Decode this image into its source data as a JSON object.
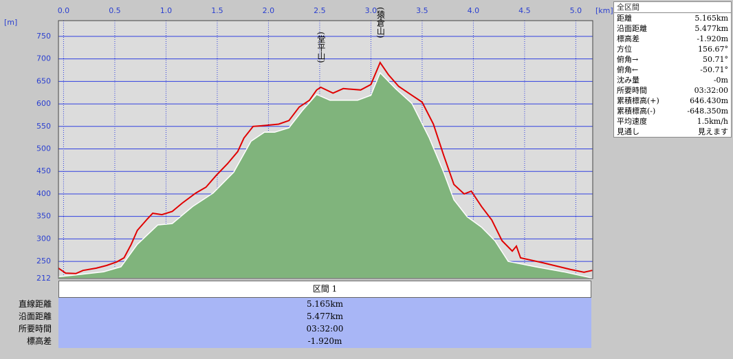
{
  "chart_data": {
    "type": "line",
    "x_unit": "[km]",
    "y_unit": "[m]",
    "xlim": [
      -0.05,
      5.165
    ],
    "ylim": [
      212,
      785
    ],
    "xticks": [
      {
        "value": 0,
        "label": "0.0"
      },
      0.5,
      {
        "value": 1,
        "label": "1.0"
      },
      1.5,
      {
        "value": 2,
        "label": "2.0"
      },
      2.5,
      {
        "value": 3,
        "label": "3.0"
      },
      3.5,
      {
        "value": 4,
        "label": "4.0"
      },
      4.5,
      {
        "value": 5,
        "label": "5.0"
      }
    ],
    "yticks": [
      212,
      250,
      300,
      350,
      400,
      450,
      500,
      550,
      600,
      650,
      700,
      750
    ],
    "grid": true,
    "annotations": [
      {
        "text": "(堂平山)",
        "x": 2.51,
        "y": 637
      },
      {
        "text": "(猿倉山)",
        "x": 3.09,
        "y": 692
      }
    ],
    "series": [
      {
        "type": "area",
        "color": "#80b47c",
        "x": [
          -0.05,
          0.12,
          0.39,
          0.56,
          0.72,
          0.92,
          1.06,
          1.26,
          1.46,
          1.66,
          1.83,
          1.96,
          2.06,
          2.2,
          2.33,
          2.47,
          2.6,
          2.87,
          3.0,
          3.09,
          3.24,
          3.4,
          3.57,
          3.71,
          3.81,
          3.94,
          4.08,
          4.21,
          4.34,
          4.61,
          4.88,
          5.16
        ],
        "values": [
          216,
          220,
          227,
          238,
          288,
          331,
          334,
          372,
          402,
          448,
          517,
          537,
          537,
          547,
          585,
          621,
          608,
          608,
          619,
          669,
          634,
          601,
          524,
          448,
          387,
          349,
          326,
          296,
          250,
          238,
          227,
          213
        ]
      },
      {
        "type": "line",
        "color": "#e00000",
        "x": [
          -0.05,
          0.02,
          0.12,
          0.19,
          0.32,
          0.42,
          0.52,
          0.59,
          0.66,
          0.72,
          0.82,
          0.87,
          0.96,
          1.06,
          1.16,
          1.29,
          1.39,
          1.49,
          1.6,
          1.7,
          1.76,
          1.85,
          1.96,
          2.1,
          2.2,
          2.3,
          2.4,
          2.47,
          2.51,
          2.63,
          2.73,
          2.9,
          3.0,
          3.09,
          3.17,
          3.27,
          3.4,
          3.5,
          3.61,
          3.71,
          3.81,
          3.91,
          3.98,
          4.08,
          4.18,
          4.28,
          4.38,
          4.42,
          4.46,
          4.68,
          4.95,
          5.08,
          5.16
        ],
        "values": [
          235,
          224,
          223,
          230,
          235,
          241,
          249,
          258,
          288,
          319,
          345,
          357,
          354,
          361,
          380,
          402,
          415,
          441,
          467,
          494,
          524,
          550,
          552,
          555,
          563,
          593,
          608,
          631,
          637,
          624,
          634,
          631,
          643,
          692,
          665,
          639,
          619,
          604,
          555,
          486,
          421,
          400,
          406,
          372,
          342,
          296,
          273,
          284,
          258,
          247,
          232,
          226,
          230
        ]
      }
    ]
  },
  "summary": {
    "title": "全区間",
    "rows": [
      [
        "距離",
        "5.165km"
      ],
      [
        "沿面距離",
        "5.477km"
      ],
      [
        "標高差",
        "-1.920m"
      ],
      [
        "方位",
        "156.67°"
      ],
      [
        "俯角→",
        "50.71°"
      ],
      [
        "俯角←",
        "-50.71°"
      ],
      [
        "沈み量",
        "-0m"
      ],
      [
        "所要時間",
        "03:32:00"
      ],
      [
        "累積標高(+)",
        "646.430m"
      ],
      [
        "累積標高(-)",
        "-648.350m"
      ],
      [
        "平均速度",
        "1.5km/h"
      ],
      [
        "見通し",
        "見えます"
      ]
    ]
  },
  "section": {
    "title": "区間 1",
    "rows": [
      [
        "直線距離",
        "5.165km"
      ],
      [
        "沿面距離",
        "5.477km"
      ],
      [
        "所要時間",
        "03:32:00"
      ],
      [
        "標高差",
        "-1.920m"
      ]
    ]
  }
}
